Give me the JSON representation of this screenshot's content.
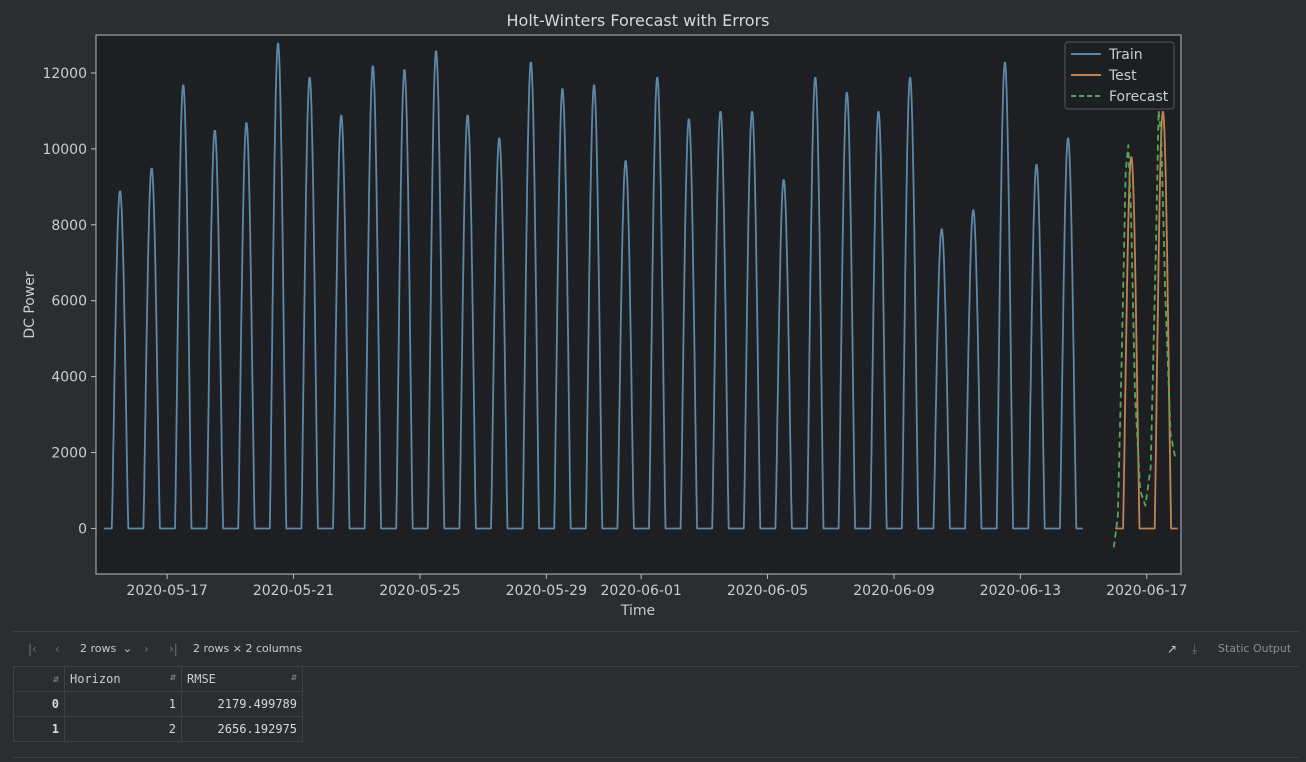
{
  "chart_data": {
    "type": "line",
    "title": "Holt-Winters Forecast with Errors",
    "xlabel": "Time",
    "ylabel": "DC Power",
    "x_range": [
      "2020-05-14T18:00",
      "2020-06-18T02:00"
    ],
    "ylim": [
      -1200,
      13000
    ],
    "yticks": [
      0,
      2000,
      4000,
      6000,
      8000,
      10000,
      12000
    ],
    "xticks": [
      "2020-05-17",
      "2020-05-21",
      "2020-05-25",
      "2020-05-29",
      "2020-06-01",
      "2020-06-05",
      "2020-06-09",
      "2020-06-13",
      "2020-06-17"
    ],
    "grid": false,
    "legend_position": "top-right",
    "series": [
      {
        "name": "Train",
        "color": "#5b89a9",
        "style": "solid",
        "x_start": "2020-05-15",
        "day_peaks": [
          8900,
          9500,
          11700,
          10500,
          10700,
          12800,
          11900,
          10900,
          12200,
          12100,
          12600,
          10900,
          10300,
          12300,
          11600,
          11700,
          9700,
          11900,
          10800,
          11000,
          11000,
          9200,
          11900,
          11500,
          11000,
          11900,
          7900,
          8400,
          12300,
          9600,
          10300
        ]
      },
      {
        "name": "Test",
        "color": "#c0834f",
        "style": "solid",
        "x_start": "2020-06-16",
        "day_peaks": [
          9800,
          11000
        ]
      },
      {
        "name": "Forecast",
        "color": "#58a55c",
        "style": "dashed",
        "x_start": "2020-06-15T23:00",
        "points": [
          [
            "2020-06-15T23:00",
            -500
          ],
          [
            "2020-06-16T02:00",
            300
          ],
          [
            "2020-06-16T05:00",
            4500
          ],
          [
            "2020-06-16T08:00",
            9400
          ],
          [
            "2020-06-16T10:00",
            10100
          ],
          [
            "2020-06-16T12:00",
            8300
          ],
          [
            "2020-06-16T15:00",
            3600
          ],
          [
            "2020-06-16T19:00",
            1000
          ],
          [
            "2020-06-16T23:00",
            600
          ],
          [
            "2020-06-17T03:00",
            1600
          ],
          [
            "2020-06-17T07:00",
            7500
          ],
          [
            "2020-06-17T09:00",
            11000
          ],
          [
            "2020-06-17T11:00",
            10400
          ],
          [
            "2020-06-17T14:00",
            6200
          ],
          [
            "2020-06-17T18:00",
            2500
          ],
          [
            "2020-06-17T22:00",
            1800
          ]
        ]
      }
    ]
  },
  "colors": {
    "background": "#2b2d30",
    "plot_background": "#1e1f22",
    "axis": "#b7bbc1",
    "border": "#3c3f44"
  },
  "toolbar": {
    "first_icon": "first-page-icon",
    "prev_icon": "prev-page-icon",
    "next_icon": "next-page-icon",
    "last_icon": "last-page-icon",
    "rows_select": "2 rows",
    "dims": "2 rows × 2 columns",
    "open_icon": "open-in-new-icon",
    "download_icon": "download-icon",
    "static_output": "Static Output"
  },
  "table": {
    "columns": [
      "",
      "Horizon",
      "RMSE"
    ],
    "rows": [
      {
        "index": "0",
        "horizon": "1",
        "rmse": "2179.499789"
      },
      {
        "index": "1",
        "horizon": "2",
        "rmse": "2656.192975"
      }
    ]
  }
}
